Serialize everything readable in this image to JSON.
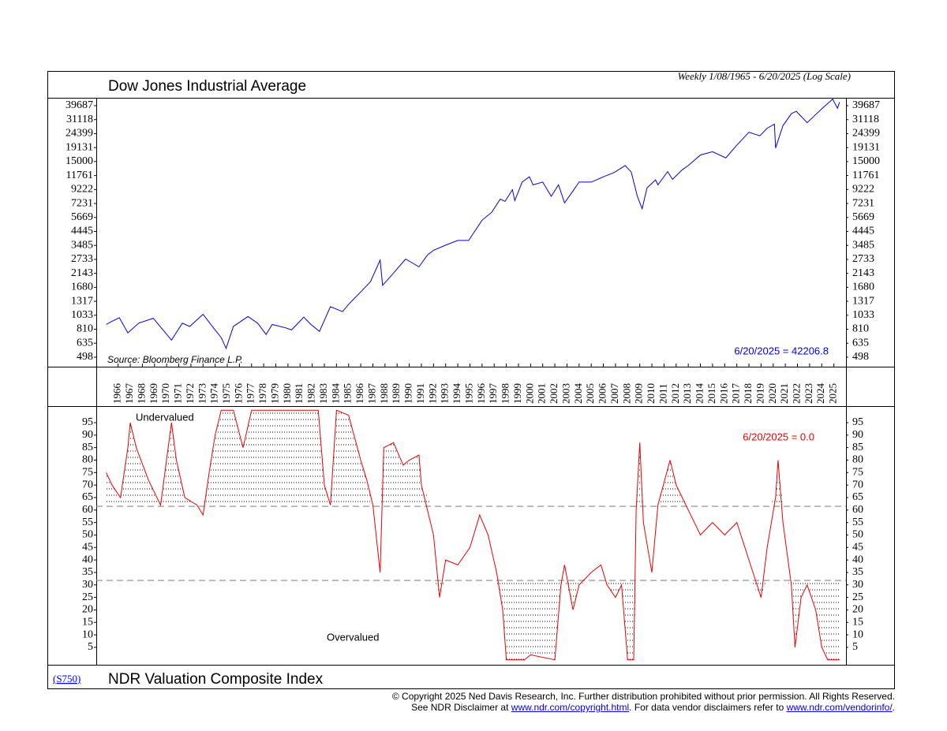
{
  "chart_data": [
    {
      "type": "line",
      "title": "Dow Jones Industrial Average",
      "subtitle": "Weekly 1/08/1965 - 6/20/2025 (Log Scale)",
      "source": "Source: Bloomberg Finance L.P.",
      "annotation": "6/20/2025 = 42206.8",
      "color": "#0000dd",
      "log_scale": true,
      "x": [
        1965.02,
        1965.4,
        1966.1,
        1966.8,
        1967.7,
        1968.9,
        1969.6,
        1970.4,
        1971.3,
        1971.9,
        1973.0,
        1973.9,
        1974.5,
        1974.9,
        1975.5,
        1976.7,
        1977.5,
        1978.2,
        1978.7,
        1979.8,
        1980.3,
        1981.3,
        1981.9,
        1982.6,
        1983.5,
        1984.5,
        1985.0,
        1986.0,
        1986.8,
        1987.6,
        1987.8,
        1988.5,
        1989.7,
        1990.8,
        1991.5,
        1992.0,
        1993.0,
        1994.0,
        1994.9,
        1995.5,
        1996.0,
        1996.8,
        1997.5,
        1997.9,
        1998.5,
        1998.7,
        1999.3,
        1999.9,
        2000.2,
        2001.0,
        2001.7,
        2002.3,
        2002.8,
        2003.5,
        2004.0,
        2005.0,
        2006.0,
        2006.9,
        2007.8,
        2008.3,
        2008.8,
        2009.2,
        2009.6,
        2010.3,
        2010.5,
        2011.3,
        2011.7,
        2012.5,
        2013.0,
        2014.0,
        2015.0,
        2016.1,
        2016.9,
        2018.0,
        2018.9,
        2019.5,
        2020.1,
        2020.2,
        2020.8,
        2021.5,
        2021.9,
        2022.8,
        2023.5,
        2024.2,
        2024.9,
        2025.3,
        2025.47
      ],
      "values": [
        880,
        920,
        990,
        760,
        900,
        980,
        820,
        670,
        900,
        850,
        1050,
        820,
        700,
        580,
        850,
        1010,
        900,
        740,
        880,
        830,
        800,
        1000,
        880,
        780,
        1200,
        1100,
        1250,
        1550,
        1850,
        2700,
        1740,
        2050,
        2750,
        2400,
        2950,
        3200,
        3500,
        3800,
        3800,
        4600,
        5400,
        6200,
        7800,
        7500,
        9200,
        7600,
        10500,
        11500,
        10000,
        10500,
        8200,
        10000,
        7300,
        9000,
        10500,
        10500,
        11500,
        12400,
        14000,
        12500,
        8200,
        6600,
        9500,
        10900,
        10000,
        12600,
        11000,
        13000,
        14000,
        16800,
        17800,
        16000,
        19500,
        25000,
        23500,
        26800,
        28800,
        19000,
        28000,
        34500,
        36000,
        29500,
        34000,
        39000,
        44500,
        38000,
        42206.8
      ],
      "xlim": [
        1964.2,
        2026.0
      ],
      "xticks": [
        1966,
        1967,
        1968,
        1969,
        1970,
        1971,
        1972,
        1973,
        1974,
        1975,
        1976,
        1977,
        1978,
        1979,
        1980,
        1981,
        1982,
        1983,
        1984,
        1985,
        1986,
        1987,
        1988,
        1989,
        1990,
        1991,
        1992,
        1993,
        1994,
        1995,
        1996,
        1997,
        1998,
        1999,
        2000,
        2001,
        2002,
        2003,
        2004,
        2005,
        2006,
        2007,
        2008,
        2009,
        2010,
        2011,
        2012,
        2013,
        2014,
        2015,
        2016,
        2017,
        2018,
        2019,
        2020,
        2021,
        2022,
        2023,
        2024,
        2025
      ],
      "ylim": [
        422,
        44906
      ],
      "yticks": [
        498,
        635,
        810,
        1033,
        1317,
        1680,
        2143,
        2733,
        3485,
        4445,
        5669,
        7231,
        9222,
        11761,
        15000,
        19131,
        24399,
        31118,
        39687
      ]
    },
    {
      "type": "line",
      "title": "NDR Valuation Composite Index",
      "code": "(S750)",
      "annotation": "6/20/2025 = 0.0",
      "color": "#ee0000",
      "upper_label": "Undervalued",
      "lower_label": "Overvalued",
      "reference_lines": [
        61.5,
        31.8
      ],
      "x": [
        1965.02,
        1965.5,
        1966.2,
        1966.8,
        1967.0,
        1967.5,
        1968.5,
        1969.5,
        1970.4,
        1970.8,
        1971.5,
        1972.5,
        1973.0,
        1973.5,
        1974.0,
        1974.5,
        1975.5,
        1976.3,
        1977.0,
        1982.5,
        1983.0,
        1983.5,
        1984.0,
        1985.0,
        1986.0,
        1986.5,
        1987.0,
        1987.6,
        1987.9,
        1988.7,
        1989.5,
        1990.0,
        1990.8,
        1991.0,
        1992.0,
        1992.5,
        1993.0,
        1994.0,
        1995.0,
        1995.8,
        1996.5,
        1997.2,
        1997.7,
        1998.0,
        1999.5,
        2000.0,
        2002.0,
        2002.5,
        2002.8,
        2003.5,
        2004.0,
        2005.0,
        2005.8,
        2006.3,
        2007.0,
        2007.5,
        2008.0,
        2008.5,
        2008.7,
        2009.0,
        2009.3,
        2010.0,
        2010.5,
        2011.5,
        2012.0,
        2013.0,
        2014.0,
        2015.0,
        2016.0,
        2017.0,
        2018.0,
        2019.0,
        2019.5,
        2020.2,
        2020.4,
        2020.8,
        2021.5,
        2021.8,
        2022.3,
        2022.8,
        2023.5,
        2024.0,
        2024.5,
        2025.47
      ],
      "values": [
        75,
        70,
        65,
        85,
        95,
        85,
        72,
        62,
        95,
        80,
        65,
        62,
        58,
        75,
        90,
        100,
        100,
        85,
        100,
        100,
        70,
        62,
        100,
        98,
        80,
        72,
        62,
        35,
        85,
        87,
        78,
        80,
        82,
        70,
        50,
        25,
        40,
        38,
        45,
        58,
        50,
        35,
        20,
        0,
        0,
        2,
        0,
        30,
        38,
        20,
        30,
        35,
        38,
        30,
        25,
        30,
        0,
        0,
        60,
        87,
        55,
        35,
        62,
        80,
        70,
        60,
        50,
        55,
        50,
        55,
        40,
        25,
        45,
        65,
        80,
        55,
        30,
        5,
        25,
        30,
        20,
        5,
        0,
        0
      ],
      "xlim": [
        1964.2,
        2026.0
      ],
      "ylim": [
        -0.4,
        101
      ],
      "yticks": [
        5,
        10,
        15,
        20,
        25,
        30,
        35,
        40,
        45,
        50,
        55,
        60,
        65,
        70,
        75,
        80,
        85,
        90,
        95
      ]
    }
  ],
  "footer": {
    "copyright": "© Copyright 2025 Ned Davis Research, Inc.  Further distribution prohibited without prior permission.  All Rights Reserved.",
    "line2_a": "See NDR Disclaimer at ",
    "link1": "www.ndr.com/copyright.html",
    "line2_b": ". For data vendor disclaimers refer to ",
    "link2": "www.ndr.com/vendorinfo/",
    "line2_c": "."
  }
}
